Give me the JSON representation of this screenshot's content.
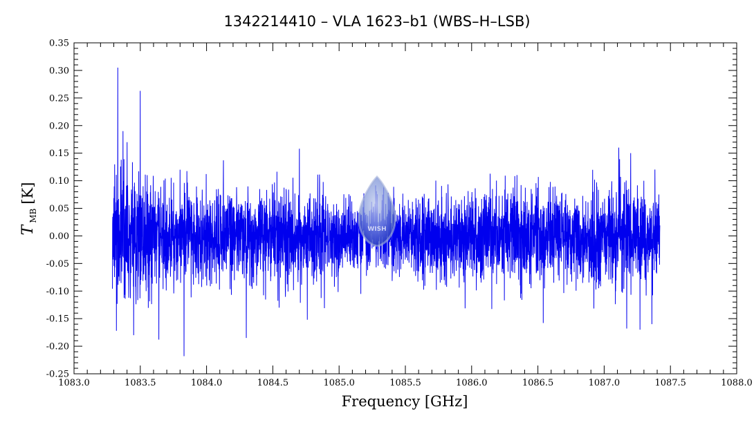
{
  "chart_data": {
    "type": "line",
    "title": "1342214410 – VLA 1623–b1 (WBS–H–LSB)",
    "xlabel": "Frequency [GHz]",
    "ylabel": {
      "symbol": "T",
      "subscript": "MB",
      "unit": "[K]"
    },
    "xlim": [
      1083.0,
      1088.0
    ],
    "ylim": [
      -0.25,
      0.35
    ],
    "x_ticks": [
      "1083.0",
      "1083.5",
      "1084.0",
      "1084.5",
      "1085.0",
      "1085.5",
      "1086.0",
      "1086.5",
      "1087.0",
      "1087.5",
      "1088.0"
    ],
    "y_ticks": [
      "-0.25",
      "-0.20",
      "-0.15",
      "-0.10",
      "-0.05",
      "0.00",
      "0.05",
      "0.10",
      "0.15",
      "0.20",
      "0.25",
      "0.30",
      "0.35"
    ],
    "series_color": "#0000ee",
    "frequency_range": [
      1083.29,
      1087.42
    ],
    "baseline": 0.0,
    "noise_level": 0.04,
    "peaks": [
      {
        "x": 1083.33,
        "y": 0.305
      },
      {
        "x": 1083.5,
        "y": 0.263
      },
      {
        "x": 1083.32,
        "y": 0.23
      },
      {
        "x": 1083.37,
        "y": 0.19
      },
      {
        "x": 1083.4,
        "y": 0.17
      },
      {
        "x": 1083.8,
        "y": 0.12
      },
      {
        "x": 1084.7,
        "y": 0.158
      },
      {
        "x": 1087.11,
        "y": 0.16
      },
      {
        "x": 1087.2,
        "y": 0.15
      },
      {
        "x": 1087.27,
        "y": 0.158
      }
    ],
    "troughs": [
      {
        "x": 1083.83,
        "y": -0.218
      },
      {
        "x": 1084.3,
        "y": -0.185
      },
      {
        "x": 1083.64,
        "y": -0.188
      },
      {
        "x": 1083.45,
        "y": -0.18
      },
      {
        "x": 1083.32,
        "y": -0.172
      },
      {
        "x": 1084.76,
        "y": -0.152
      },
      {
        "x": 1086.54,
        "y": -0.158
      },
      {
        "x": 1087.17,
        "y": -0.168
      },
      {
        "x": 1087.27,
        "y": -0.17
      },
      {
        "x": 1087.36,
        "y": -0.16
      }
    ]
  },
  "watermark": {
    "text": "WISH"
  }
}
